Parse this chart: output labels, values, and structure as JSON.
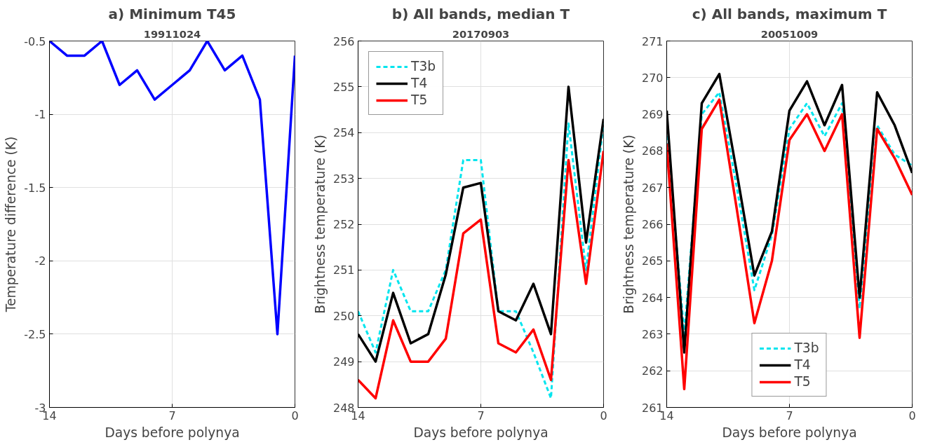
{
  "chart_data": [
    {
      "type": "line",
      "title": "a) Minimum T45",
      "subtitle": "19911024",
      "xlabel": "Days before polynya",
      "ylabel": "Temperature difference (K)",
      "x": [
        14,
        13,
        12,
        11,
        10,
        9,
        8,
        7,
        6,
        5,
        4,
        3,
        2,
        1,
        0
      ],
      "series": [
        {
          "color": "#0000ff",
          "values": [
            -0.5,
            -0.6,
            -0.6,
            -0.5,
            -0.8,
            -0.7,
            -0.9,
            -0.8,
            -0.7,
            -0.5,
            -0.7,
            -0.6,
            -0.9,
            -2.5,
            -0.6
          ]
        }
      ],
      "xlim": [
        14,
        0
      ],
      "xticks": [
        14,
        7,
        0
      ],
      "ylim": [
        -3,
        -0.5
      ],
      "yticks": [
        -3,
        -2.5,
        -2,
        -1.5,
        -1,
        -0.5
      ],
      "grid": true,
      "line_style": "solid"
    },
    {
      "type": "line",
      "title": "b) All bands, median T",
      "subtitle": "20170903",
      "xlabel": "Days before polynya",
      "ylabel": "Brightness temperature (K)",
      "x": [
        14,
        13,
        12,
        11,
        10,
        9,
        8,
        7,
        6,
        5,
        4,
        3,
        2,
        1,
        0
      ],
      "series": [
        {
          "name": "T3b",
          "color": "#00e5ee",
          "line_style": "dashed",
          "values": [
            250.1,
            249.2,
            251.0,
            250.1,
            250.1,
            251.0,
            253.4,
            253.4,
            250.1,
            250.1,
            249.2,
            248.2,
            254.2,
            251.0,
            254.2
          ]
        },
        {
          "name": "T4",
          "color": "#000000",
          "line_style": "solid",
          "values": [
            249.6,
            249.0,
            250.5,
            249.4,
            249.6,
            250.9,
            252.8,
            252.9,
            250.1,
            249.9,
            250.7,
            249.6,
            255.0,
            251.6,
            254.3
          ]
        },
        {
          "name": "T5",
          "color": "#ff0000",
          "line_style": "solid",
          "values": [
            248.6,
            248.2,
            249.9,
            249.0,
            249.0,
            249.5,
            251.8,
            252.1,
            249.4,
            249.2,
            249.7,
            248.6,
            253.4,
            250.7,
            253.6
          ]
        }
      ],
      "xlim": [
        14,
        0
      ],
      "xticks": [
        14,
        7,
        0
      ],
      "ylim": [
        248,
        256
      ],
      "yticks": [
        248,
        249,
        250,
        251,
        252,
        253,
        254,
        255,
        256
      ],
      "grid": true,
      "legend": "top left"
    },
    {
      "type": "line",
      "title": "c) All bands, maximum T",
      "subtitle": "20051009",
      "xlabel": "Days before polynya",
      "ylabel": "Brightness temperature (K)",
      "x": [
        14,
        13,
        12,
        11,
        10,
        9,
        8,
        7,
        6,
        5,
        4,
        3,
        2,
        1,
        0
      ],
      "series": [
        {
          "name": "T3b",
          "color": "#00e5ee",
          "line_style": "dashed",
          "values": [
            268.6,
            263.0,
            269.0,
            269.6,
            267.0,
            264.2,
            265.7,
            268.6,
            269.3,
            268.4,
            269.3,
            263.7,
            268.7,
            267.9,
            267.6
          ]
        },
        {
          "name": "T4",
          "color": "#000000",
          "line_style": "solid",
          "values": [
            269.1,
            262.5,
            269.3,
            270.1,
            267.4,
            264.6,
            265.8,
            269.1,
            269.9,
            268.7,
            269.8,
            264.0,
            269.6,
            268.7,
            267.4
          ]
        },
        {
          "name": "T5",
          "color": "#ff0000",
          "line_style": "solid",
          "values": [
            268.2,
            261.5,
            268.6,
            269.4,
            266.4,
            263.3,
            265.0,
            268.3,
            269.0,
            268.0,
            269.0,
            262.9,
            268.6,
            267.8,
            266.8
          ]
        }
      ],
      "xlim": [
        14,
        0
      ],
      "xticks": [
        14,
        7,
        0
      ],
      "ylim": [
        261,
        271
      ],
      "yticks": [
        261,
        262,
        263,
        264,
        265,
        266,
        267,
        268,
        269,
        270,
        271
      ],
      "grid": true,
      "legend": "bottom"
    }
  ]
}
